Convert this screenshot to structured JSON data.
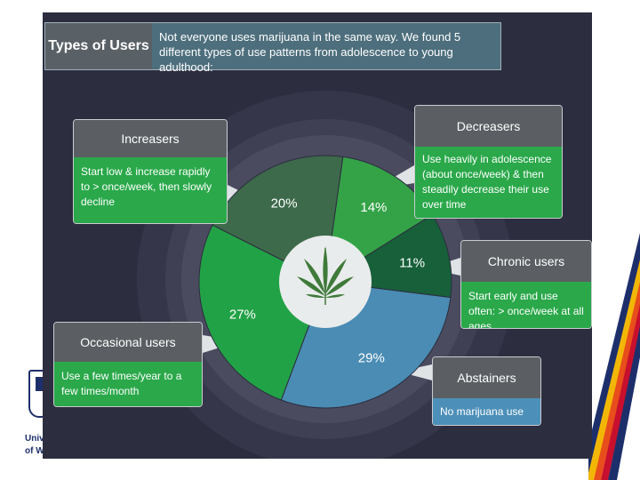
{
  "header": {
    "title": "Types of Users",
    "description": "Not everyone uses marijuana in the same way. We found 5 different types of use patterns from adolescence to young adulthood:"
  },
  "chart_data": {
    "type": "pie",
    "title": "",
    "slices": [
      {
        "label": "Decreasers",
        "value": 14,
        "text": "14%",
        "color": "#34a347"
      },
      {
        "label": "Chronic users",
        "value": 11,
        "text": "11%",
        "color": "#17603a"
      },
      {
        "label": "Abstainers",
        "value": 29,
        "text": "29%",
        "color": "#4a8cb4"
      },
      {
        "label": "Occasional users",
        "value": 27,
        "text": "27%",
        "color": "#22a246"
      },
      {
        "label": "Increasers",
        "value": 20,
        "text": "20%",
        "color": "#3d6a4a"
      }
    ],
    "center_icon": "cannabis-leaf-icon"
  },
  "callouts": {
    "increasers": {
      "title": "Increasers",
      "desc": "Start low & increase rapidly to > once/week, then slowly decline"
    },
    "decreasers": {
      "title": "Decreasers",
      "desc": "Use heavily in adolescence (about once/week) & then steadily decrease their use over time"
    },
    "chronic": {
      "title": "Chronic users",
      "desc": "Start early and use often: > once/week at all ages"
    },
    "occasional": {
      "title": "Occasional users",
      "desc": "Use a few times/year to a few times/month"
    },
    "abstainers": {
      "title": "Abstainers",
      "desc": "No marijuana use"
    }
  },
  "logo": {
    "line1": "Univ",
    "line2": "of W"
  }
}
